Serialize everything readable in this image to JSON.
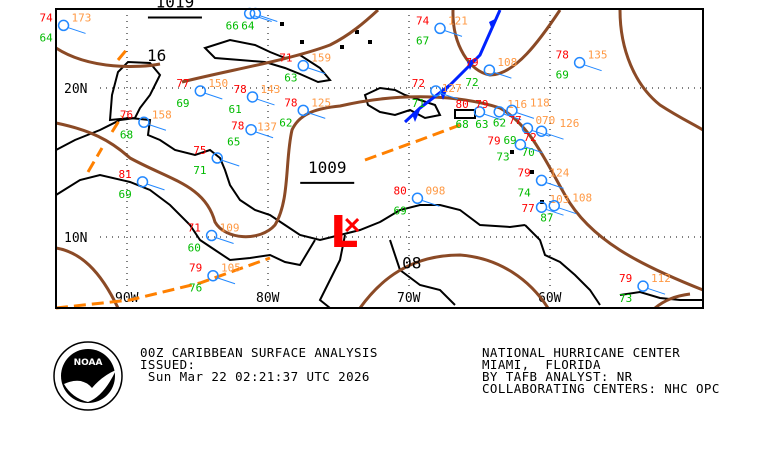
{
  "map": {
    "grid_labels": {
      "lat": [
        {
          "label": "20N",
          "lat": 20
        },
        {
          "label": "10N",
          "lat": 10
        }
      ],
      "lon": [
        {
          "label": "90W",
          "lon": -90
        },
        {
          "label": "80W",
          "lon": -80
        },
        {
          "label": "70W",
          "lon": -70
        },
        {
          "label": "60W",
          "lon": -60
        }
      ]
    },
    "isobar_labels": [
      {
        "text": "1019",
        "lon": -86.6,
        "lat": 25.4,
        "underlined": true
      },
      {
        "text": "1009",
        "lon": -75.8,
        "lat": 14.3,
        "underlined": true
      },
      {
        "text": "16",
        "lon": -87.9,
        "lat": 21.8,
        "underlined": false
      },
      {
        "text": "08",
        "lon": -69.8,
        "lat": 7.9,
        "underlined": false
      }
    ],
    "low_center": {
      "symbol": "L",
      "lon": -74.6,
      "lat": 10.4,
      "color": "#ff0000"
    },
    "colors": {
      "isobar": "#8b4a26",
      "cold_front": "#0022ff",
      "trough": "#ff8000",
      "temp": "#ff0000",
      "pressure": "#ff9944",
      "dewpoint": "#00bb00",
      "station": "#2288ff",
      "weather": "#ff00ff",
      "coast": "#000000"
    },
    "stations": [
      {
        "lon": -94.5,
        "lat": 24.2,
        "temp": "74",
        "pressure": "173",
        "dew": "64"
      },
      {
        "lon": -81.3,
        "lat": 25.0,
        "temp": "",
        "pressure": "",
        "dew": "66"
      },
      {
        "lon": -80.9,
        "lat": 25.0,
        "temp": "",
        "pressure": "",
        "dew": "64"
      },
      {
        "lon": -84.8,
        "lat": 19.8,
        "temp": "77",
        "pressure": "150",
        "dew": "69"
      },
      {
        "lon": -81.1,
        "lat": 19.4,
        "temp": "78",
        "pressure": "143",
        "dew": "61"
      },
      {
        "lon": -77.5,
        "lat": 18.5,
        "temp": "78",
        "pressure": "125",
        "dew": "62"
      },
      {
        "lon": -81.2,
        "lat": 17.2,
        "temp": "78",
        "pressure": "137",
        "dew": "65"
      },
      {
        "lon": -77.5,
        "lat": 21.5,
        "temp": "71",
        "pressure": "159",
        "dew": "63"
      },
      {
        "lon": -88.8,
        "lat": 17.7,
        "temp": "76",
        "pressure": "158",
        "dew": "68"
      },
      {
        "lon": -83.6,
        "lat": 15.3,
        "temp": "75",
        "pressure": "",
        "dew": "71"
      },
      {
        "lon": -88.9,
        "lat": 13.7,
        "temp": "81",
        "pressure": "",
        "dew": "69"
      },
      {
        "lon": -84.0,
        "lat": 10.1,
        "temp": "71",
        "pressure": "109",
        "dew": "60"
      },
      {
        "lon": -83.9,
        "lat": 7.4,
        "temp": "79",
        "pressure": "105",
        "dew": "76"
      },
      {
        "lon": -67.8,
        "lat": 24.0,
        "temp": "74",
        "pressure": "121",
        "dew": "67"
      },
      {
        "lon": -64.3,
        "lat": 21.2,
        "temp": "79",
        "pressure": "108",
        "dew": "72"
      },
      {
        "lon": -57.9,
        "lat": 21.7,
        "temp": "78",
        "pressure": "135",
        "dew": "69"
      },
      {
        "lon": -68.1,
        "lat": 19.8,
        "temp": "72",
        "pressure": "127",
        "dew": "71"
      },
      {
        "lon": -65.0,
        "lat": 18.4,
        "temp": "80",
        "pressure": "",
        "dew": "68"
      },
      {
        "lon": -63.6,
        "lat": 18.4,
        "temp": "79",
        "pressure": "116",
        "dew": "63"
      },
      {
        "lon": -62.7,
        "lat": 18.5,
        "temp": "",
        "pressure": "118",
        "dew": "62"
      },
      {
        "lon": -61.6,
        "lat": 17.3,
        "temp": "77",
        "pressure": "070",
        "dew": "69"
      },
      {
        "lon": -60.6,
        "lat": 17.1,
        "temp": "72",
        "pressure": "126",
        "dew": "70"
      },
      {
        "lon": -62.1,
        "lat": 16.2,
        "temp": "79",
        "pressure": "",
        "dew": "73"
      },
      {
        "lon": -60.6,
        "lat": 13.8,
        "temp": "79",
        "pressure": "124",
        "dew": "74"
      },
      {
        "lon": -60.6,
        "lat": 12.0,
        "temp": "77",
        "pressure": "103",
        "dew": ""
      },
      {
        "lon": -59.7,
        "lat": 12.1,
        "temp": "",
        "pressure": "108",
        "dew": "87"
      },
      {
        "lon": -69.4,
        "lat": 12.6,
        "temp": "80",
        "pressure": "098",
        "dew": "69"
      },
      {
        "lon": -53.4,
        "lat": 6.7,
        "temp": "79",
        "pressure": "112",
        "dew": "73"
      }
    ]
  },
  "footer": {
    "logo_text": "NOAA",
    "title": "00Z CARIBBEAN SURFACE ANALYSIS",
    "issued_label": "ISSUED:",
    "issued_time": " Sun Mar 22 02:21:37 UTC 2026",
    "center": "NATIONAL HURRICANE CENTER",
    "location": "MIAMI,  FLORIDA",
    "analyst": "BY TAFB ANALYST: NR",
    "collaborating": "COLLABORATING CENTERS: NHC OPC"
  }
}
